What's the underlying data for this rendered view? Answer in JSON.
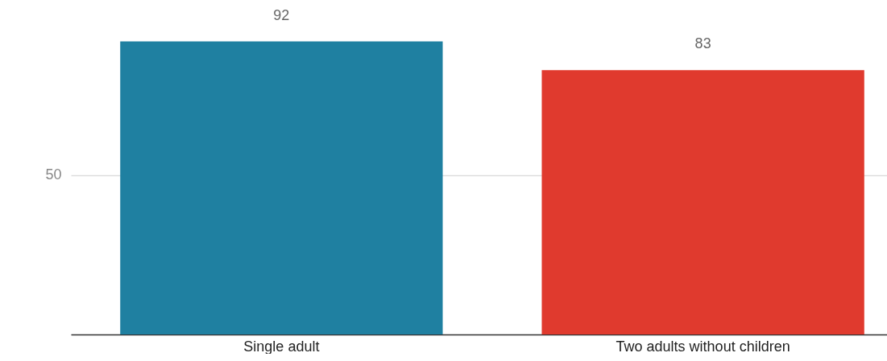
{
  "chart_data": {
    "type": "bar",
    "categories": [
      "Single adult",
      "Two adults without children"
    ],
    "values": [
      92,
      83
    ],
    "colors": [
      "#1f80a1",
      "#e03a2e"
    ],
    "ylim": [
      0,
      105
    ],
    "yticks": [
      50
    ],
    "grid": "y",
    "data_labels": true
  }
}
